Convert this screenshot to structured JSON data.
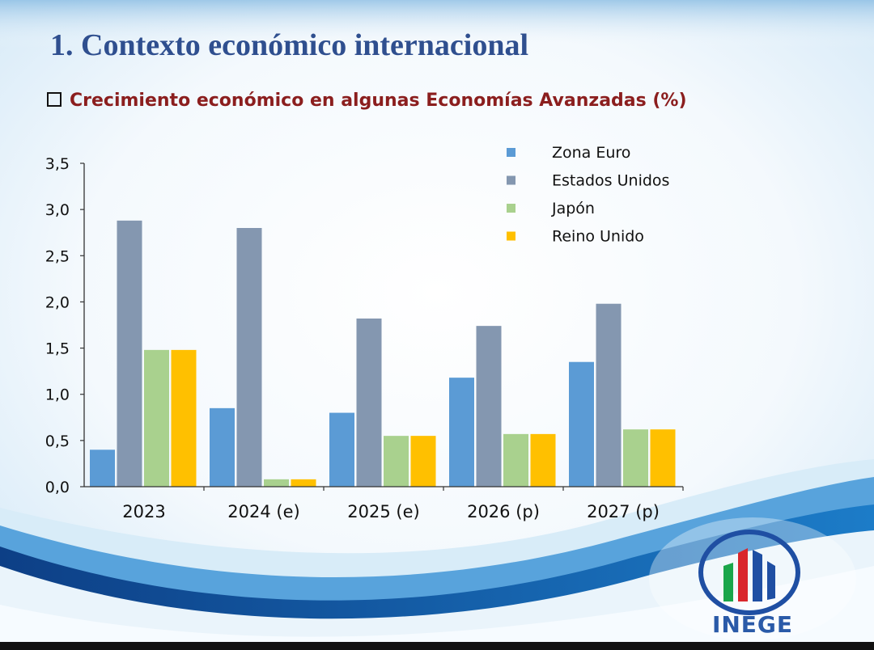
{
  "slide": {
    "number": "1.",
    "title": "Contexto económico internacional",
    "subtitle": "Crecimiento económico en algunas Economías Avanzadas (%)",
    "logo_text": "INEGE"
  },
  "colors": {
    "title": "#2f4f8f",
    "subtitle": "#8b1e1e",
    "series": [
      "#5b9bd5",
      "#8497b0",
      "#a9d18e",
      "#ffc000"
    ]
  },
  "chart_data": {
    "type": "bar",
    "categories": [
      "2023",
      "2024 (e)",
      "2025 (e)",
      "2026 (p)",
      "2027 (p)"
    ],
    "series": [
      {
        "name": "Zona Euro",
        "values": [
          0.4,
          0.85,
          0.8,
          1.18,
          1.35
        ]
      },
      {
        "name": "Estados Unidos",
        "values": [
          2.88,
          2.8,
          1.82,
          1.74,
          1.98
        ]
      },
      {
        "name": "Japón",
        "values": [
          1.48,
          0.08,
          0.55,
          0.57,
          0.62
        ]
      },
      {
        "name": "Reino Unido",
        "values": [
          1.48,
          0.08,
          0.55,
          0.57,
          0.62
        ]
      }
    ],
    "yticks": [
      "0,0",
      "0,5",
      "1,0",
      "1,5",
      "2,0",
      "2,5",
      "3,0",
      "3,5"
    ],
    "ylim": [
      0,
      3.5
    ],
    "legend_position": "top-right",
    "grid": false
  }
}
